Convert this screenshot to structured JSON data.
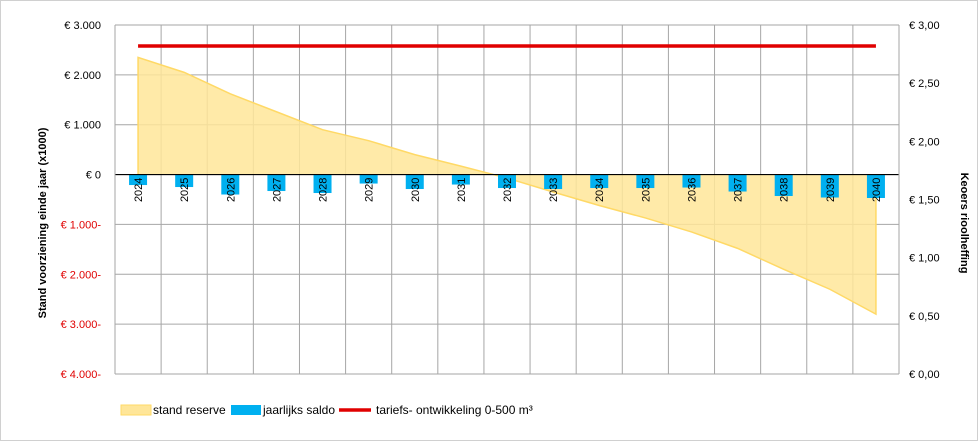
{
  "chart_data": {
    "type": "bar",
    "categories": [
      "2024",
      "2025",
      "2026",
      "2027",
      "2028",
      "2029",
      "2030",
      "2031",
      "2032",
      "2033",
      "2034",
      "2035",
      "2036",
      "2037",
      "2038",
      "2039",
      "2040"
    ],
    "series": [
      {
        "name": "stand reserve",
        "kind": "area",
        "axis": "left",
        "color": "#FFE699",
        "stroke": "#FFD966",
        "values": [
          2350,
          2050,
          1620,
          1260,
          900,
          680,
          400,
          170,
          -70,
          -350,
          -620,
          -870,
          -1150,
          -1480,
          -1900,
          -2300,
          -2800
        ]
      },
      {
        "name": "jaarlijks saldo",
        "kind": "bar",
        "axis": "left",
        "color": "#00B0F0",
        "values": [
          -210,
          -250,
          -400,
          -330,
          -370,
          -180,
          -290,
          -200,
          -270,
          -290,
          -270,
          -270,
          -260,
          -340,
          -430,
          -460,
          -470
        ]
      },
      {
        "name": "tariefs- ontwikkeling 0-500 m³",
        "kind": "line",
        "axis": "right",
        "color": "#E00000",
        "values": [
          2.82,
          2.82,
          2.82,
          2.82,
          2.82,
          2.82,
          2.82,
          2.82,
          2.82,
          2.82,
          2.82,
          2.82,
          2.82,
          2.82,
          2.82,
          2.82,
          2.82
        ]
      }
    ],
    "y_left": {
      "label": "Stand voorziening einde jaar (x1000)",
      "ylim": [
        -4000,
        3000
      ],
      "ticks": [
        {
          "value": 3000,
          "label": "€ 3.000",
          "color": "#000000"
        },
        {
          "value": 2000,
          "label": "€ 2.000",
          "color": "#000000"
        },
        {
          "value": 1000,
          "label": "€ 1.000",
          "color": "#000000"
        },
        {
          "value": 0,
          "label": "€ 0",
          "color": "#000000"
        },
        {
          "value": -1000,
          "label": "€ 1.000-",
          "color": "#E00000"
        },
        {
          "value": -2000,
          "label": "€ 2.000-",
          "color": "#E00000"
        },
        {
          "value": -3000,
          "label": "€ 3.000-",
          "color": "#E00000"
        },
        {
          "value": -4000,
          "label": "€ 4.000-",
          "color": "#E00000"
        }
      ]
    },
    "y_right": {
      "label": "Keoers rioolheffing",
      "ylim": [
        0,
        3
      ],
      "ticks": [
        {
          "value": 3.0,
          "label": "€ 3,00"
        },
        {
          "value": 2.5,
          "label": "€ 2,50"
        },
        {
          "value": 2.0,
          "label": "€ 2,00"
        },
        {
          "value": 1.5,
          "label": "€ 1,50"
        },
        {
          "value": 1.0,
          "label": "€ 1,00"
        },
        {
          "value": 0.5,
          "label": "€ 0,50"
        },
        {
          "value": 0.0,
          "label": "€ 0,00"
        }
      ]
    },
    "grid": true,
    "legend": "bottom-left"
  },
  "colors": {
    "grid": "#A6A6A6",
    "axis": "#000000",
    "negative_tick": "#E00000"
  }
}
